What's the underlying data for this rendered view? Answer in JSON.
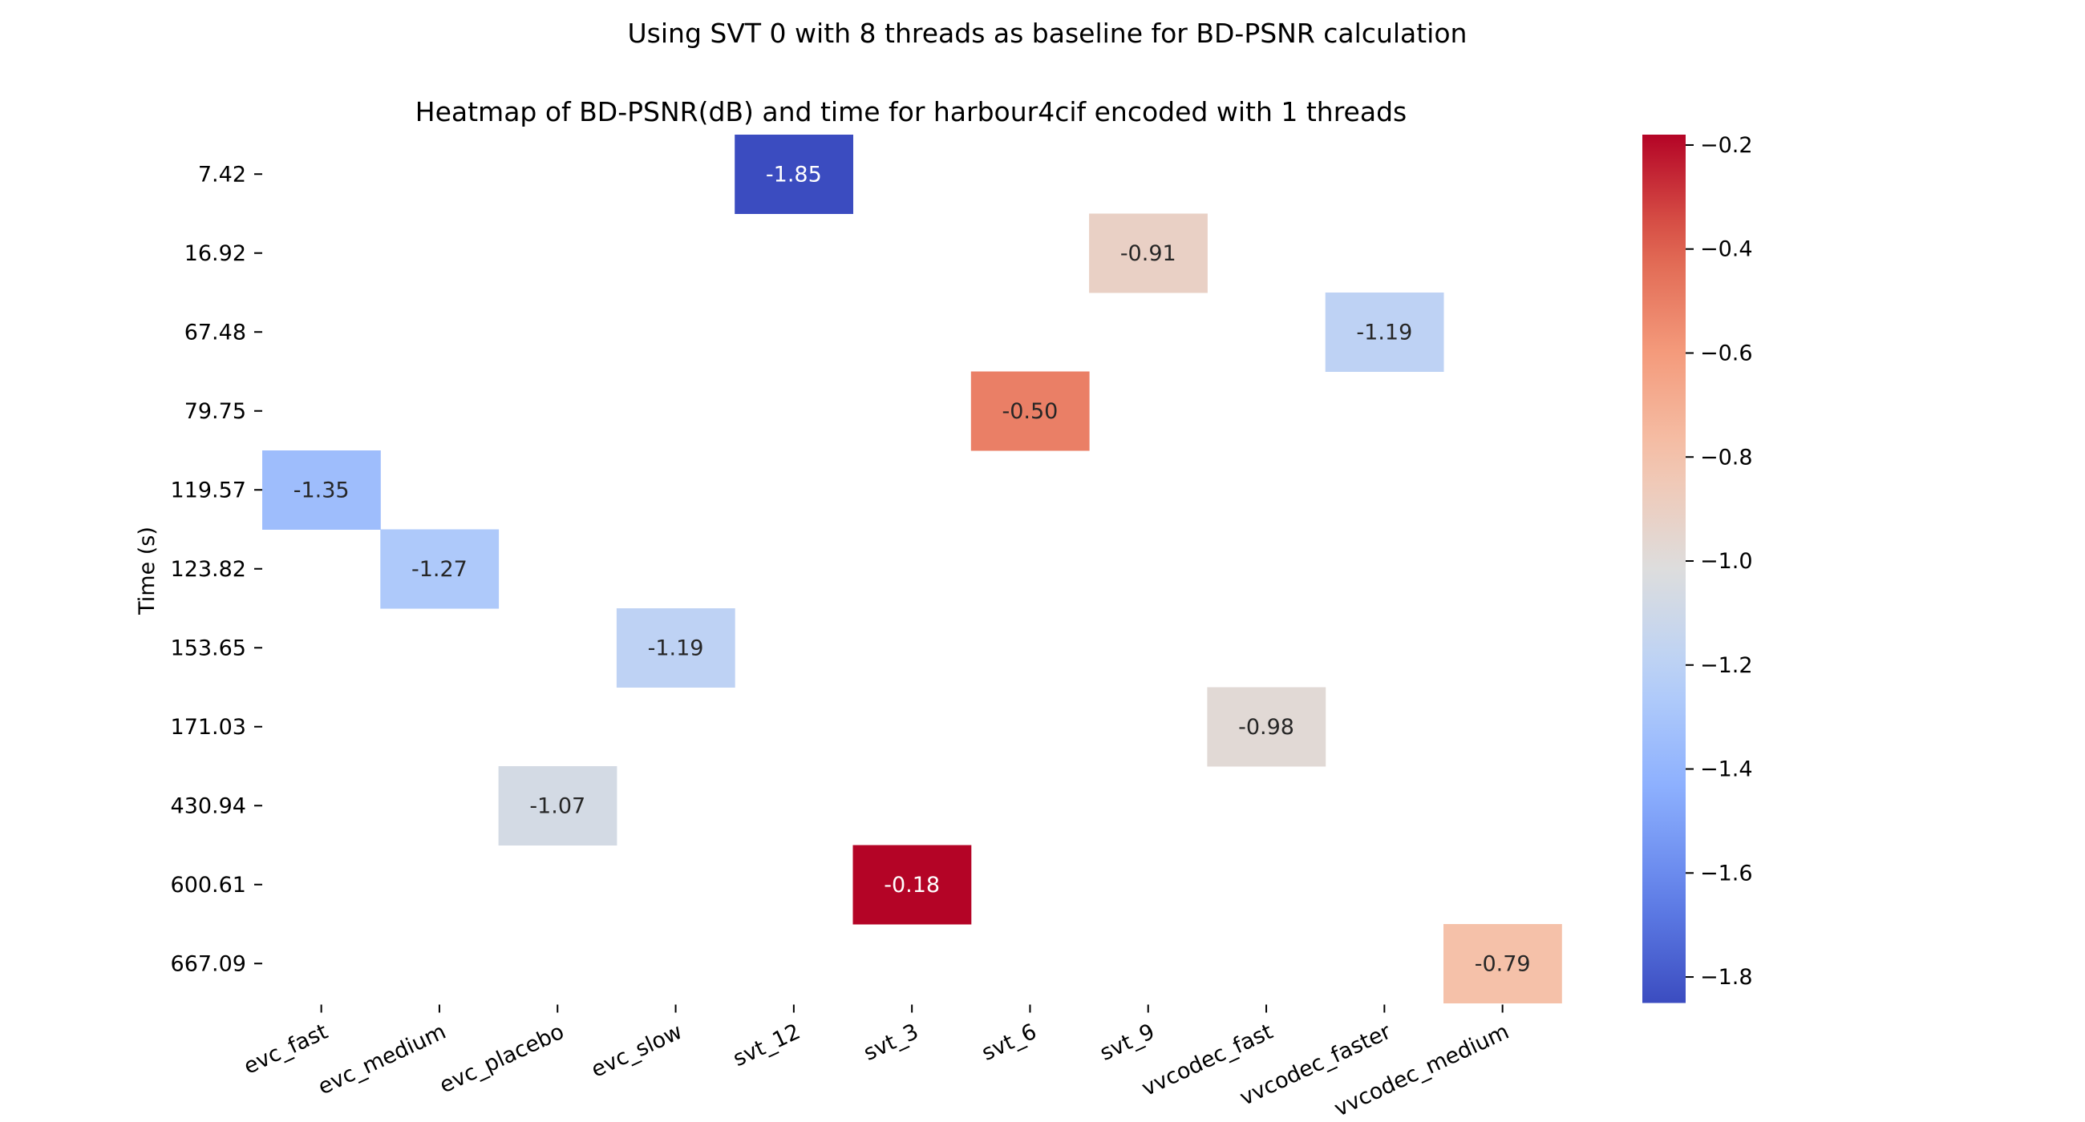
{
  "chart_data": {
    "type": "heatmap",
    "suptitle": "Using SVT 0 with 8 threads as baseline for BD-PSNR calculation",
    "title": "Heatmap of BD-PSNR(dB) and time for harbour4cif encoded with 1 threads",
    "xlabel": "",
    "ylabel": "Time (s)",
    "x_categories": [
      "evc_fast",
      "evc_medium",
      "evc_placebo",
      "evc_slow",
      "svt_12",
      "svt_3",
      "svt_6",
      "svt_9",
      "vvcodec_fast",
      "vvcodec_faster",
      "vvcodec_medium"
    ],
    "y_categories": [
      "7.42",
      "16.92",
      "67.48",
      "79.75",
      "119.57",
      "123.82",
      "153.65",
      "171.03",
      "430.94",
      "600.61",
      "667.09"
    ],
    "cells": [
      {
        "x": "svt_12",
        "y": "7.42",
        "value": -1.85,
        "label": "-1.85"
      },
      {
        "x": "svt_9",
        "y": "16.92",
        "value": -0.91,
        "label": "-0.91"
      },
      {
        "x": "vvcodec_faster",
        "y": "67.48",
        "value": -1.19,
        "label": "-1.19"
      },
      {
        "x": "svt_6",
        "y": "79.75",
        "value": -0.5,
        "label": "-0.50"
      },
      {
        "x": "evc_fast",
        "y": "119.57",
        "value": -1.35,
        "label": "-1.35"
      },
      {
        "x": "evc_medium",
        "y": "123.82",
        "value": -1.27,
        "label": "-1.27"
      },
      {
        "x": "evc_slow",
        "y": "153.65",
        "value": -1.19,
        "label": "-1.19"
      },
      {
        "x": "vvcodec_fast",
        "y": "171.03",
        "value": -0.98,
        "label": "-0.98"
      },
      {
        "x": "evc_placebo",
        "y": "430.94",
        "value": -1.07,
        "label": "-1.07"
      },
      {
        "x": "svt_3",
        "y": "600.61",
        "value": -0.18,
        "label": "-0.18"
      },
      {
        "x": "vvcodec_medium",
        "y": "667.09",
        "value": -0.79,
        "label": "-0.79"
      }
    ],
    "colormap": "coolwarm",
    "vmin": -1.85,
    "vmax": -0.18,
    "colorbar_ticks": [
      -0.2,
      -0.4,
      -0.6,
      -0.8,
      -1.0,
      -1.2,
      -1.4,
      -1.6,
      -1.8
    ],
    "colorbar_tick_labels": [
      "−0.2",
      "−0.4",
      "−0.6",
      "−0.8",
      "−1.0",
      "−1.2",
      "−1.4",
      "−1.6",
      "−1.8"
    ],
    "grid": false,
    "legend": "colorbar-right"
  }
}
